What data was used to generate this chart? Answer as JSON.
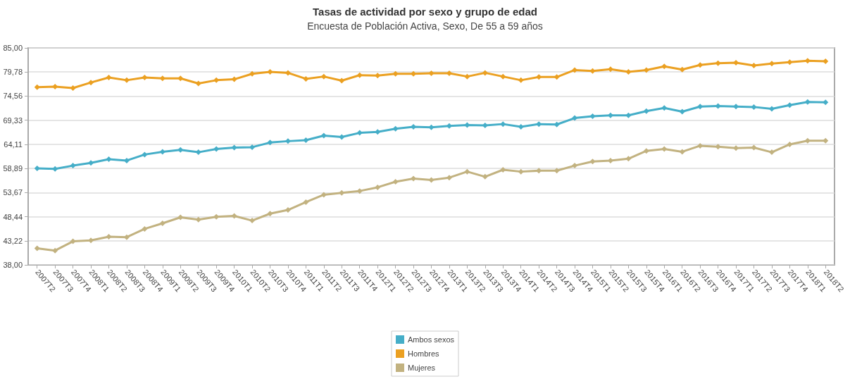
{
  "chart_data": {
    "type": "line",
    "title": "Tasas de actividad por sexo y grupo de edad",
    "subtitle": "Encuesta de Población Activa, Sexo, De 55 a 59 años",
    "categories": [
      "2007T2",
      "2007T3",
      "2007T4",
      "2008T1",
      "2008T2",
      "2008T3",
      "2008T4",
      "2009T1",
      "2009T2",
      "2009T3",
      "2009T4",
      "2010T1",
      "2010T2",
      "2010T3",
      "2010T4",
      "2011T1",
      "2011T2",
      "2011T3",
      "2011T4",
      "2012T1",
      "2012T2",
      "2012T3",
      "2012T4",
      "2013T1",
      "2013T2",
      "2013T3",
      "2013T4",
      "2014T1",
      "2014T2",
      "2014T3",
      "2014T4",
      "2015T1",
      "2015T2",
      "2015T3",
      "2015T4",
      "2016T1",
      "2016T2",
      "2016T3",
      "2016T4",
      "2017T1",
      "2017T2",
      "2017T3",
      "2017T4",
      "2018T1",
      "2018T2"
    ],
    "series": [
      {
        "name": "Ambos sexos",
        "color": "#45aec8",
        "values": [
          58.9,
          58.8,
          59.5,
          60.1,
          60.9,
          60.6,
          61.9,
          62.5,
          62.9,
          62.4,
          63.1,
          63.4,
          63.5,
          64.5,
          64.8,
          65.0,
          66.0,
          65.7,
          66.6,
          66.8,
          67.5,
          67.9,
          67.8,
          68.1,
          68.3,
          68.2,
          68.5,
          67.9,
          68.5,
          68.4,
          69.8,
          70.2,
          70.4,
          70.4,
          71.3,
          72.0,
          71.2,
          72.3,
          72.4,
          72.3,
          72.2,
          71.8,
          72.6,
          73.3,
          73.2
        ]
      },
      {
        "name": "Hombres",
        "color": "#eba021",
        "values": [
          76.5,
          76.6,
          76.3,
          77.5,
          78.6,
          78.0,
          78.6,
          78.4,
          78.4,
          77.3,
          78.0,
          78.2,
          79.4,
          79.8,
          79.6,
          78.3,
          78.8,
          77.9,
          79.1,
          79.0,
          79.4,
          79.4,
          79.5,
          79.5,
          78.8,
          79.6,
          78.8,
          78.0,
          78.7,
          78.7,
          80.2,
          80.0,
          80.4,
          79.8,
          80.2,
          81.0,
          80.3,
          81.3,
          81.7,
          81.8,
          81.2,
          81.6,
          81.9,
          82.2,
          82.1
        ]
      },
      {
        "name": "Mujeres",
        "color": "#c2b280",
        "values": [
          41.6,
          41.1,
          43.1,
          43.3,
          44.1,
          44.0,
          45.8,
          47.0,
          48.3,
          47.8,
          48.4,
          48.6,
          47.6,
          49.1,
          49.9,
          51.6,
          53.2,
          53.6,
          54.0,
          54.8,
          56.0,
          56.7,
          56.4,
          56.9,
          58.2,
          57.1,
          58.6,
          58.2,
          58.4,
          58.4,
          59.5,
          60.4,
          60.6,
          61.0,
          62.7,
          63.1,
          62.5,
          63.8,
          63.6,
          63.3,
          63.4,
          62.4,
          64.1,
          64.9,
          64.9
        ]
      }
    ],
    "ylim": [
      38,
      85
    ],
    "yticks": [
      {
        "value": 38,
        "label": "38,00"
      },
      {
        "value": 43.22,
        "label": "43,22"
      },
      {
        "value": 48.44,
        "label": "48,44"
      },
      {
        "value": 53.67,
        "label": "53,67"
      },
      {
        "value": 58.89,
        "label": "58,89"
      },
      {
        "value": 64.11,
        "label": "64,11"
      },
      {
        "value": 69.33,
        "label": "69,33"
      },
      {
        "value": 74.56,
        "label": "74,56"
      },
      {
        "value": 79.78,
        "label": "79,78"
      },
      {
        "value": 85,
        "label": "85,00"
      }
    ],
    "grid": "y",
    "legend": "bottom",
    "marker": "diamond",
    "line_style": "solid"
  }
}
